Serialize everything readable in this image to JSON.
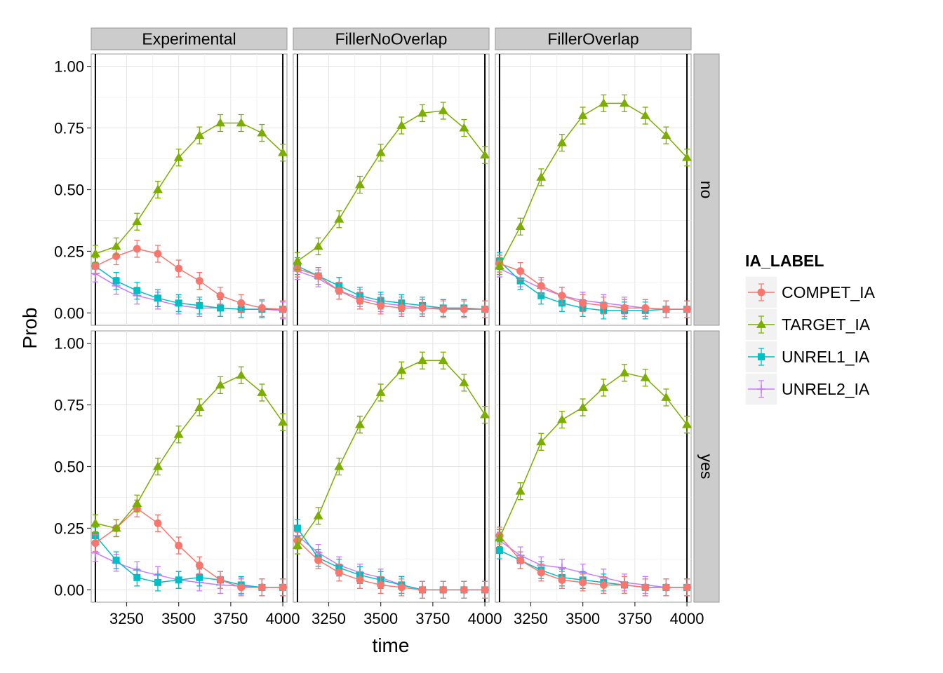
{
  "chart_data": {
    "type": "line",
    "xlabel": "time",
    "ylabel": "Prob",
    "columns": [
      "Experimental",
      "FillerNoOverlap",
      "FillerOverlap"
    ],
    "rows": [
      "no",
      "yes"
    ],
    "xlim": [
      3080,
      4020
    ],
    "ylim": [
      -0.05,
      1.05
    ],
    "xticks": [
      3250,
      3500,
      3750,
      4000
    ],
    "xtick_labels": [
      "3250",
      "3500",
      "3750",
      "4000"
    ],
    "yticks": [
      0,
      0.25,
      0.5,
      0.75,
      1
    ],
    "ytick_labels": [
      "0.00",
      "0.25",
      "0.50",
      "0.75",
      "1.00"
    ],
    "vlines": [
      3100,
      4000
    ],
    "grid": true,
    "legend": {
      "title": "IA_LABEL",
      "position": "right",
      "entries": [
        "COMPET_IA",
        "TARGET_IA",
        "UNREL1_IA",
        "UNREL2_IA"
      ]
    },
    "series_style": {
      "COMPET_IA": {
        "color": "#F8766D",
        "shape": "circle"
      },
      "TARGET_IA": {
        "color": "#7CAE00",
        "shape": "triangle"
      },
      "UNREL1_IA": {
        "color": "#00BFC4",
        "shape": "square"
      },
      "UNREL2_IA": {
        "color": "#C77CFF",
        "shape": "plus"
      }
    },
    "panels": [
      {
        "column": "Experimental",
        "row": "no",
        "series": [
          {
            "name": "COMPET_IA",
            "x": [
              3100,
              3200,
              3300,
              3400,
              3500,
              3600,
              3700,
              3800,
              3900,
              4000
            ],
            "y": [
              0.19,
              0.23,
              0.26,
              0.24,
              0.18,
              0.13,
              0.07,
              0.04,
              0.02,
              0.015
            ]
          },
          {
            "name": "TARGET_IA",
            "x": [
              3100,
              3200,
              3300,
              3400,
              3500,
              3600,
              3700,
              3800,
              3900,
              4000
            ],
            "y": [
              0.24,
              0.27,
              0.37,
              0.5,
              0.63,
              0.72,
              0.77,
              0.77,
              0.73,
              0.65
            ]
          },
          {
            "name": "UNREL1_IA",
            "x": [
              3100,
              3200,
              3300,
              3400,
              3500,
              3600,
              3700,
              3800,
              3900,
              4000
            ],
            "y": [
              0.19,
              0.13,
              0.09,
              0.06,
              0.04,
              0.03,
              0.02,
              0.015,
              0.015,
              0.015
            ]
          },
          {
            "name": "UNREL2_IA",
            "x": [
              3100,
              3200,
              3300,
              3400,
              3500,
              3600,
              3700,
              3800,
              3900,
              4000
            ],
            "y": [
              0.16,
              0.11,
              0.07,
              0.05,
              0.03,
              0.02,
              0.02,
              0.015,
              0.015,
              0.01
            ]
          }
        ]
      },
      {
        "column": "FillerNoOverlap",
        "row": "no",
        "series": [
          {
            "name": "COMPET_IA",
            "x": [
              3100,
              3200,
              3300,
              3400,
              3500,
              3600,
              3700,
              3800,
              3900,
              4000
            ],
            "y": [
              0.18,
              0.15,
              0.09,
              0.05,
              0.03,
              0.02,
              0.02,
              0.015,
              0.015,
              0.015
            ]
          },
          {
            "name": "TARGET_IA",
            "x": [
              3100,
              3200,
              3300,
              3400,
              3500,
              3600,
              3700,
              3800,
              3900,
              4000
            ],
            "y": [
              0.21,
              0.27,
              0.38,
              0.52,
              0.65,
              0.76,
              0.81,
              0.82,
              0.75,
              0.64
            ]
          },
          {
            "name": "UNREL1_IA",
            "x": [
              3100,
              3200,
              3300,
              3400,
              3500,
              3600,
              3700,
              3800,
              3900,
              4000
            ],
            "y": [
              0.19,
              0.15,
              0.11,
              0.07,
              0.05,
              0.04,
              0.03,
              0.02,
              0.02,
              0.015
            ]
          },
          {
            "name": "UNREL2_IA",
            "x": [
              3100,
              3200,
              3300,
              3400,
              3500,
              3600,
              3700,
              3800,
              3900,
              4000
            ],
            "y": [
              0.17,
              0.14,
              0.09,
              0.06,
              0.04,
              0.03,
              0.02,
              0.02,
              0.015,
              0.015
            ]
          }
        ]
      },
      {
        "column": "FillerOverlap",
        "row": "no",
        "series": [
          {
            "name": "COMPET_IA",
            "x": [
              3100,
              3200,
              3300,
              3400,
              3500,
              3600,
              3700,
              3800,
              3900,
              4000
            ],
            "y": [
              0.2,
              0.17,
              0.11,
              0.07,
              0.04,
              0.03,
              0.02,
              0.02,
              0.015,
              0.015
            ]
          },
          {
            "name": "TARGET_IA",
            "x": [
              3100,
              3200,
              3300,
              3400,
              3500,
              3600,
              3700,
              3800,
              3900,
              4000
            ],
            "y": [
              0.19,
              0.35,
              0.55,
              0.69,
              0.8,
              0.85,
              0.85,
              0.8,
              0.72,
              0.63
            ]
          },
          {
            "name": "UNREL1_IA",
            "x": [
              3100,
              3200,
              3300,
              3400,
              3500,
              3600,
              3700,
              3800,
              3900,
              4000
            ],
            "y": [
              0.21,
              0.13,
              0.07,
              0.04,
              0.02,
              0.01,
              0.01,
              0.01,
              0.015,
              0.015
            ]
          },
          {
            "name": "UNREL2_IA",
            "x": [
              3100,
              3200,
              3300,
              3400,
              3500,
              3600,
              3700,
              3800,
              3900,
              4000
            ],
            "y": [
              0.18,
              0.14,
              0.1,
              0.07,
              0.05,
              0.04,
              0.03,
              0.02,
              0.015,
              0.015
            ]
          }
        ]
      },
      {
        "column": "Experimental",
        "row": "yes",
        "series": [
          {
            "name": "COMPET_IA",
            "x": [
              3100,
              3200,
              3300,
              3400,
              3500,
              3600,
              3700,
              3800,
              3900,
              4000
            ],
            "y": [
              0.19,
              0.25,
              0.33,
              0.27,
              0.18,
              0.1,
              0.04,
              0.01,
              0.01,
              0.01
            ]
          },
          {
            "name": "TARGET_IA",
            "x": [
              3100,
              3200,
              3300,
              3400,
              3500,
              3600,
              3700,
              3800,
              3900,
              4000
            ],
            "y": [
              0.27,
              0.25,
              0.35,
              0.5,
              0.63,
              0.74,
              0.83,
              0.87,
              0.8,
              0.68
            ]
          },
          {
            "name": "UNREL1_IA",
            "x": [
              3100,
              3200,
              3300,
              3400,
              3500,
              3600,
              3700,
              3800,
              3900,
              4000
            ],
            "y": [
              0.22,
              0.12,
              0.05,
              0.03,
              0.04,
              0.05,
              0.04,
              0.02,
              0.01,
              0.01
            ]
          },
          {
            "name": "UNREL2_IA",
            "x": [
              3100,
              3200,
              3300,
              3400,
              3500,
              3600,
              3700,
              3800,
              3900,
              4000
            ],
            "y": [
              0.15,
              0.11,
              0.08,
              0.06,
              0.04,
              0.03,
              0.02,
              0.015,
              0.01,
              0.01
            ]
          }
        ]
      },
      {
        "column": "FillerNoOverlap",
        "row": "yes",
        "series": [
          {
            "name": "COMPET_IA",
            "x": [
              3100,
              3200,
              3300,
              3400,
              3500,
              3600,
              3700,
              3800,
              3900,
              4000
            ],
            "y": [
              0.2,
              0.12,
              0.07,
              0.04,
              0.02,
              0.01,
              0,
              0,
              0,
              0
            ]
          },
          {
            "name": "TARGET_IA",
            "x": [
              3100,
              3200,
              3300,
              3400,
              3500,
              3600,
              3700,
              3800,
              3900,
              4000
            ],
            "y": [
              0.18,
              0.3,
              0.5,
              0.67,
              0.8,
              0.89,
              0.93,
              0.93,
              0.84,
              0.71
            ]
          },
          {
            "name": "UNREL1_IA",
            "x": [
              3100,
              3200,
              3300,
              3400,
              3500,
              3600,
              3700,
              3800,
              3900,
              4000
            ],
            "y": [
              0.25,
              0.13,
              0.09,
              0.06,
              0.04,
              0.02,
              0,
              0,
              0,
              0
            ]
          },
          {
            "name": "UNREL2_IA",
            "x": [
              3100,
              3200,
              3300,
              3400,
              3500,
              3600,
              3700,
              3800,
              3900,
              4000
            ],
            "y": [
              0.22,
              0.15,
              0.1,
              0.07,
              0.05,
              0.02,
              0,
              0,
              0,
              0
            ]
          }
        ]
      },
      {
        "column": "FillerOverlap",
        "row": "yes",
        "series": [
          {
            "name": "COMPET_IA",
            "x": [
              3100,
              3200,
              3300,
              3400,
              3500,
              3600,
              3700,
              3800,
              3900,
              4000
            ],
            "y": [
              0.22,
              0.12,
              0.07,
              0.04,
              0.03,
              0.02,
              0.02,
              0.01,
              0.01,
              0.01
            ]
          },
          {
            "name": "TARGET_IA",
            "x": [
              3100,
              3200,
              3300,
              3400,
              3500,
              3600,
              3700,
              3800,
              3900,
              4000
            ],
            "y": [
              0.21,
              0.4,
              0.6,
              0.69,
              0.74,
              0.82,
              0.88,
              0.86,
              0.78,
              0.67
            ]
          },
          {
            "name": "UNREL1_IA",
            "x": [
              3100,
              3200,
              3300,
              3400,
              3500,
              3600,
              3700,
              3800,
              3900,
              4000
            ],
            "y": [
              0.16,
              0.12,
              0.08,
              0.05,
              0.04,
              0.03,
              0.02,
              0.01,
              0.01,
              0.01
            ]
          },
          {
            "name": "UNREL2_IA",
            "x": [
              3100,
              3200,
              3300,
              3400,
              3500,
              3600,
              3700,
              3800,
              3900,
              4000
            ],
            "y": [
              0.2,
              0.14,
              0.1,
              0.09,
              0.07,
              0.05,
              0.03,
              0.02,
              0.01,
              0.01
            ]
          }
        ]
      }
    ]
  }
}
